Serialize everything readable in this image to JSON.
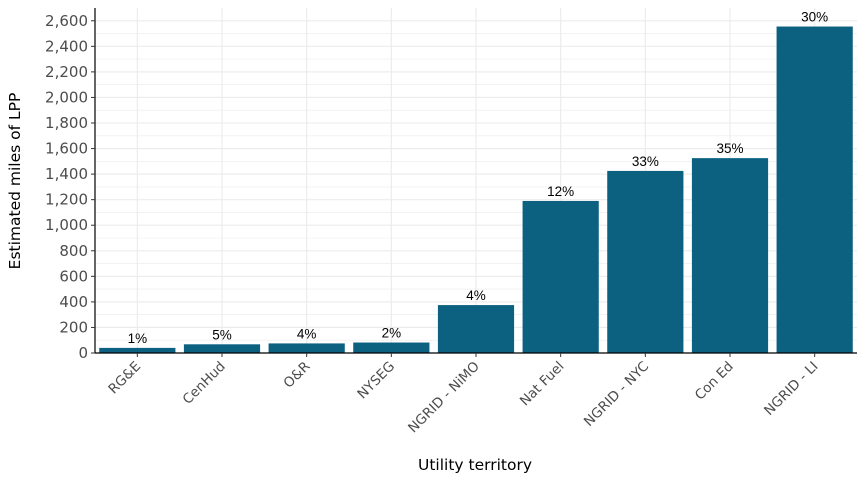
{
  "chart_data": {
    "type": "bar",
    "categories": [
      "RG&E",
      "CenHud",
      "O&R",
      "NYSEG",
      "NGRID - NiMO",
      "Nat Fuel",
      "NGRID - NYC",
      "Con Ed",
      "NGRID - LI"
    ],
    "values": [
      40,
      68,
      75,
      82,
      375,
      1190,
      1425,
      1525,
      2555
    ],
    "labels": [
      "1%",
      "5%",
      "4%",
      "2%",
      "4%",
      "12%",
      "33%",
      "35%",
      "30%"
    ],
    "title": "",
    "xlabel": "Utility territory",
    "ylabel": "Estimated miles of LPP",
    "ylim": [
      0,
      2700
    ],
    "yticks": [
      0,
      200,
      400,
      600,
      800,
      1000,
      1200,
      1400,
      1600,
      1800,
      2000,
      2200,
      2400,
      2600
    ],
    "ytick_labels": [
      "0",
      "200",
      "400",
      "600",
      "800",
      "1,000",
      "1,200",
      "1,400",
      "1,600",
      "1,800",
      "2,000",
      "2,200",
      "2,400",
      "2,600"
    ],
    "grid": true,
    "bar_color": "#0c6080",
    "grid_color": "#ebebeb"
  }
}
